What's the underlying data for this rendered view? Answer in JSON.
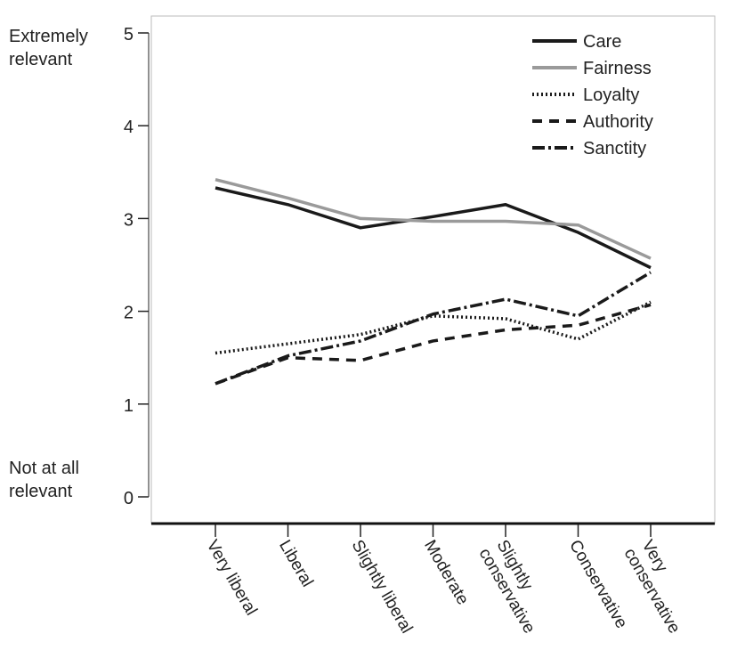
{
  "chart_data": {
    "type": "line",
    "title": "",
    "xlabel": "",
    "ylabel": "",
    "ylim": [
      0,
      5
    ],
    "yticks": [
      0,
      1,
      2,
      3,
      4,
      5
    ],
    "y_extreme_labels": {
      "top": [
        "Extremely",
        "relevant"
      ],
      "bottom": [
        "Not at all",
        "relevant"
      ]
    },
    "categories": [
      [
        "Very liberal"
      ],
      [
        "Liberal"
      ],
      [
        "Slightly liberal"
      ],
      [
        "Moderate"
      ],
      [
        "Slightly",
        "conservative"
      ],
      [
        "Conservative"
      ],
      [
        "Very",
        "conservative"
      ]
    ],
    "legend_position": "top-right",
    "series": [
      {
        "name": "Care",
        "style": "solid",
        "color": "#1a1a1a",
        "values": [
          3.33,
          3.15,
          2.9,
          3.02,
          3.15,
          2.85,
          2.47
        ]
      },
      {
        "name": "Fairness",
        "style": "solid",
        "color": "#9a9a9a",
        "values": [
          3.42,
          3.22,
          3.0,
          2.97,
          2.97,
          2.93,
          2.57
        ]
      },
      {
        "name": "Loyalty",
        "style": "dotted",
        "color": "#1a1a1a",
        "values": [
          1.55,
          1.65,
          1.75,
          1.95,
          1.92,
          1.7,
          2.1
        ]
      },
      {
        "name": "Authority",
        "style": "dashed",
        "color": "#1a1a1a",
        "values": [
          1.22,
          1.5,
          1.47,
          1.68,
          1.8,
          1.85,
          2.07
        ]
      },
      {
        "name": "Sanctity",
        "style": "dashdot",
        "color": "#1a1a1a",
        "values": [
          1.22,
          1.52,
          1.68,
          1.97,
          2.13,
          1.95,
          2.42
        ]
      }
    ]
  }
}
